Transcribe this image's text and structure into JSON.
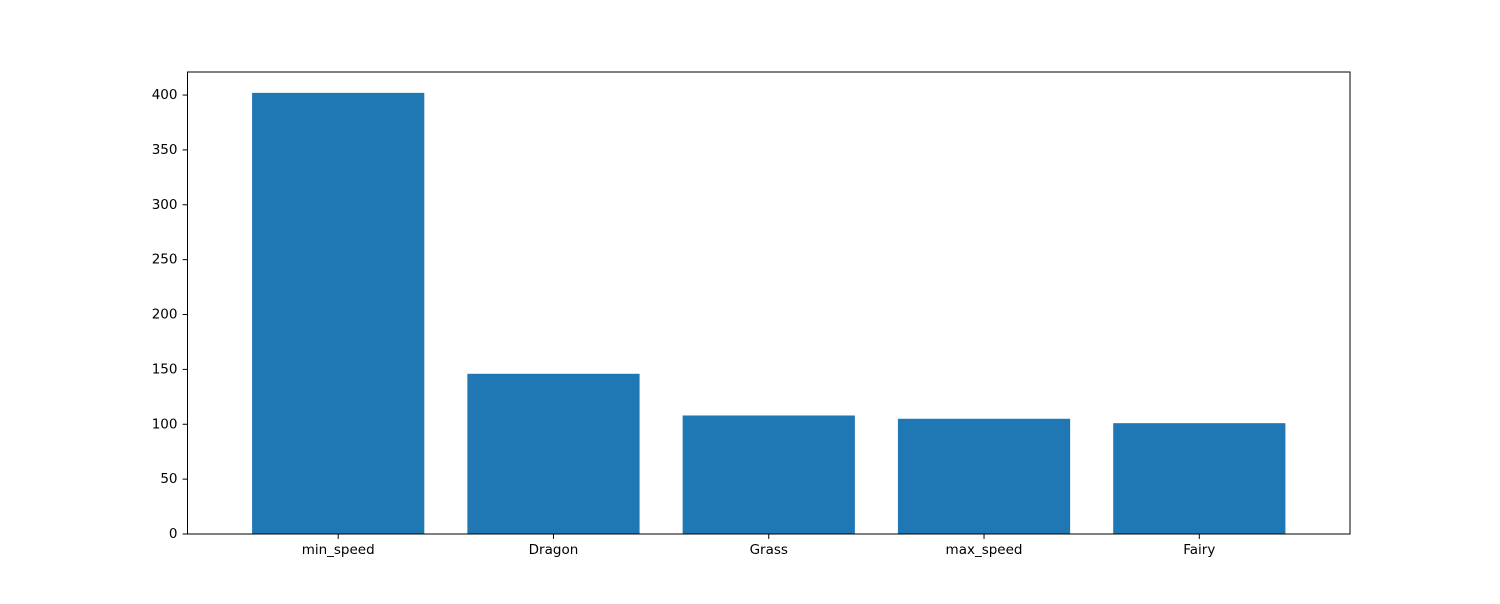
{
  "chart_data": {
    "type": "bar",
    "categories": [
      "min_speed",
      "Dragon",
      "Grass",
      "max_speed",
      "Fairy"
    ],
    "values": [
      402,
      146,
      108,
      105,
      101
    ],
    "title": "",
    "xlabel": "",
    "ylabel": "",
    "ylim": [
      0,
      421
    ],
    "yticks": [
      0,
      50,
      100,
      150,
      200,
      250,
      300,
      350,
      400
    ],
    "grid": false,
    "legend": "none",
    "bar_color": "#1f77b4"
  }
}
